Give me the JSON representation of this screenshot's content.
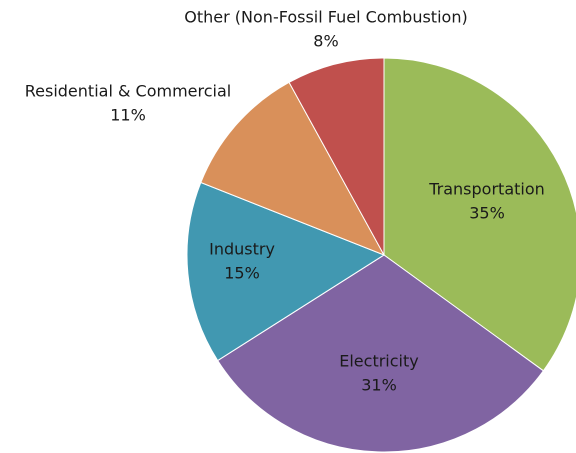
{
  "chart_data": {
    "type": "pie",
    "categories": [
      "Transportation",
      "Electricity",
      "Industry",
      "Residential & Commercial",
      "Other (Non-Fossil Fuel Combustion)"
    ],
    "values": [
      35,
      31,
      15,
      11,
      8
    ],
    "value_labels": [
      "35%",
      "31%",
      "15%",
      "11%",
      "8%"
    ],
    "colors": [
      "#9bbb59",
      "#8064a2",
      "#4198b1",
      "#d9905a",
      "#c0504d"
    ]
  }
}
